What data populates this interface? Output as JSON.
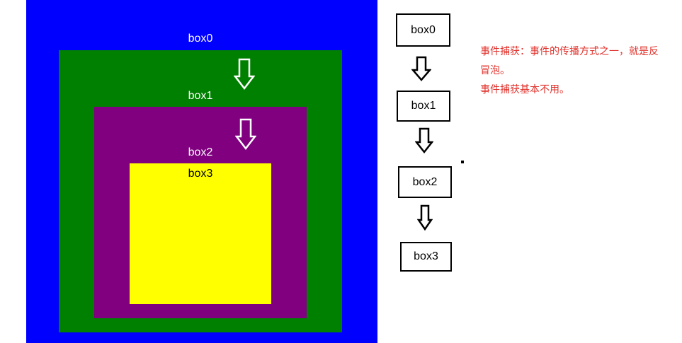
{
  "nested_diagram": {
    "box0": {
      "label": "box0",
      "color": "#0000ff"
    },
    "box1": {
      "label": "box1",
      "color": "#008000"
    },
    "box2": {
      "label": "box2",
      "color": "#800080"
    },
    "box3": {
      "label": "box3",
      "color": "#ffff00"
    }
  },
  "flow_chart": {
    "boxes": [
      "box0",
      "box1",
      "box2",
      "box3"
    ]
  },
  "note": {
    "line1": "事件捕获：事件的传播方式之一，就是反",
    "line2": "冒泡。",
    "line3": "事件捕获基本不用。",
    "color": "#e0302a"
  }
}
